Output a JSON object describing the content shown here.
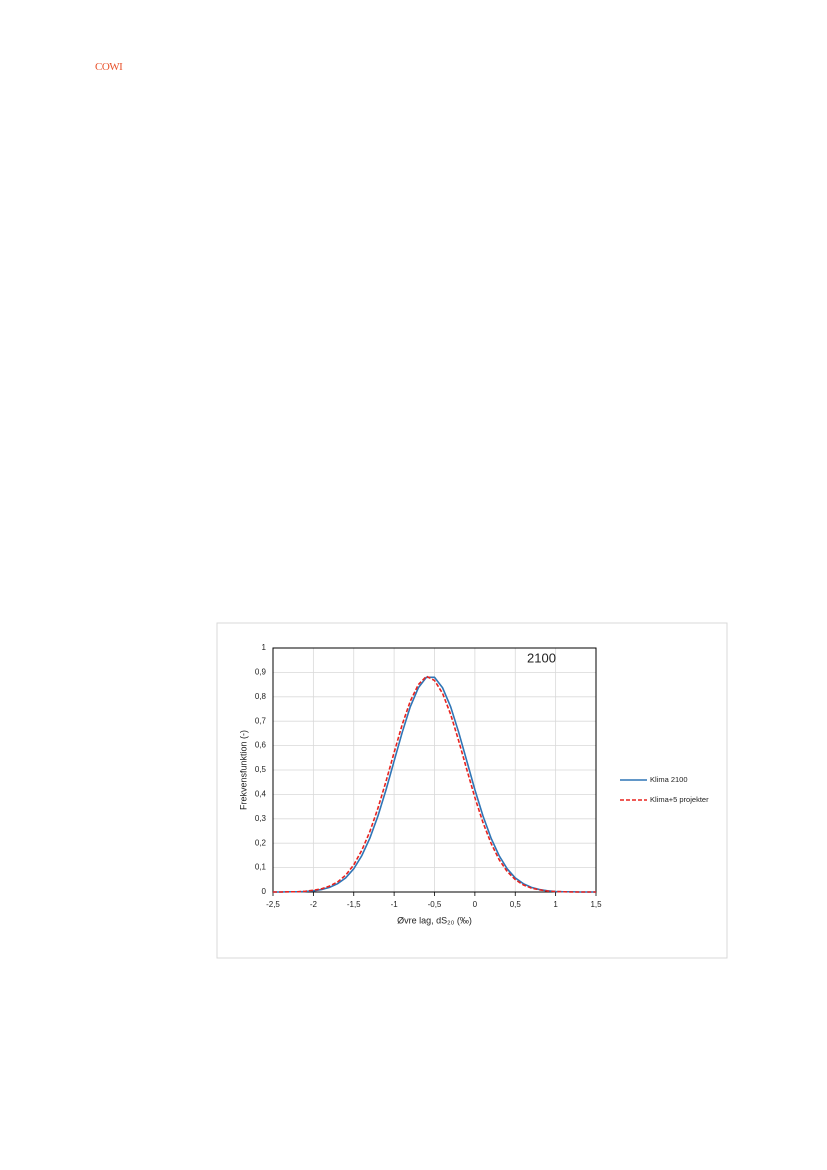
{
  "header": {
    "logo": "COWI"
  },
  "chart_data": {
    "type": "line",
    "annotation": "2100",
    "x_label": "Øvre lag, dS₂₀ (‰)",
    "y_label": "Frekvensfunktion (-)",
    "x": [
      -2.5,
      -2.4,
      -2.3,
      -2.2,
      -2.1,
      -2.0,
      -1.9,
      -1.8,
      -1.7,
      -1.6,
      -1.5,
      -1.4,
      -1.3,
      -1.2,
      -1.1,
      -1.0,
      -0.9,
      -0.8,
      -0.7,
      -0.6,
      -0.5,
      -0.4,
      -0.3,
      -0.2,
      -0.1,
      0,
      0.1,
      0.2,
      0.3,
      0.4,
      0.5,
      0.6,
      0.7,
      0.8,
      0.9,
      1.0,
      1.1,
      1.2,
      1.3,
      1.4,
      1.5
    ],
    "series": [
      {
        "name": "Klima 2100",
        "color": "#2e75b6",
        "dash": false,
        "values": [
          0,
          0,
          0.001,
          0.001,
          0.002,
          0.005,
          0.01,
          0.019,
          0.034,
          0.058,
          0.095,
          0.149,
          0.221,
          0.312,
          0.419,
          0.537,
          0.654,
          0.759,
          0.837,
          0.88,
          0.88,
          0.837,
          0.759,
          0.654,
          0.537,
          0.419,
          0.312,
          0.221,
          0.149,
          0.095,
          0.058,
          0.034,
          0.019,
          0.01,
          0.005,
          0.002,
          0.001,
          0.001,
          0,
          0,
          0
        ]
      },
      {
        "name": "Klima+5 projekter",
        "color": "#e8231f",
        "dash": true,
        "values": [
          0,
          0,
          0.001,
          0.001,
          0.003,
          0.007,
          0.013,
          0.024,
          0.041,
          0.069,
          0.111,
          0.171,
          0.248,
          0.344,
          0.454,
          0.572,
          0.686,
          0.782,
          0.85,
          0.884,
          0.867,
          0.814,
          0.728,
          0.619,
          0.502,
          0.387,
          0.285,
          0.2,
          0.133,
          0.084,
          0.051,
          0.029,
          0.016,
          0.009,
          0.004,
          0.002,
          0.001,
          0,
          0,
          0,
          0
        ]
      }
    ],
    "xlim": [
      -2.5,
      1.5
    ],
    "xticks": [
      {
        "value": -2.5,
        "label": "-2,5"
      },
      -2,
      {
        "value": -1.5,
        "label": "-1,5"
      },
      -1,
      {
        "value": -0.5,
        "label": "-0,5"
      },
      0,
      {
        "value": 0.5,
        "label": "0,5"
      },
      1,
      {
        "value": 1.5,
        "label": "1,5"
      }
    ],
    "ylim": [
      0,
      1
    ],
    "yticks": [
      0,
      {
        "value": 0.1,
        "label": "0,1"
      },
      {
        "value": 0.2,
        "label": "0,2"
      },
      {
        "value": 0.3,
        "label": "0,3"
      },
      {
        "value": 0.4,
        "label": "0,4"
      },
      {
        "value": 0.5,
        "label": "0,5"
      },
      {
        "value": 0.6,
        "label": "0,6"
      },
      {
        "value": 0.7,
        "label": "0,7"
      },
      {
        "value": 0.8,
        "label": "0,8"
      },
      {
        "value": 0.9,
        "label": "0,9"
      },
      1
    ],
    "grid": true
  }
}
